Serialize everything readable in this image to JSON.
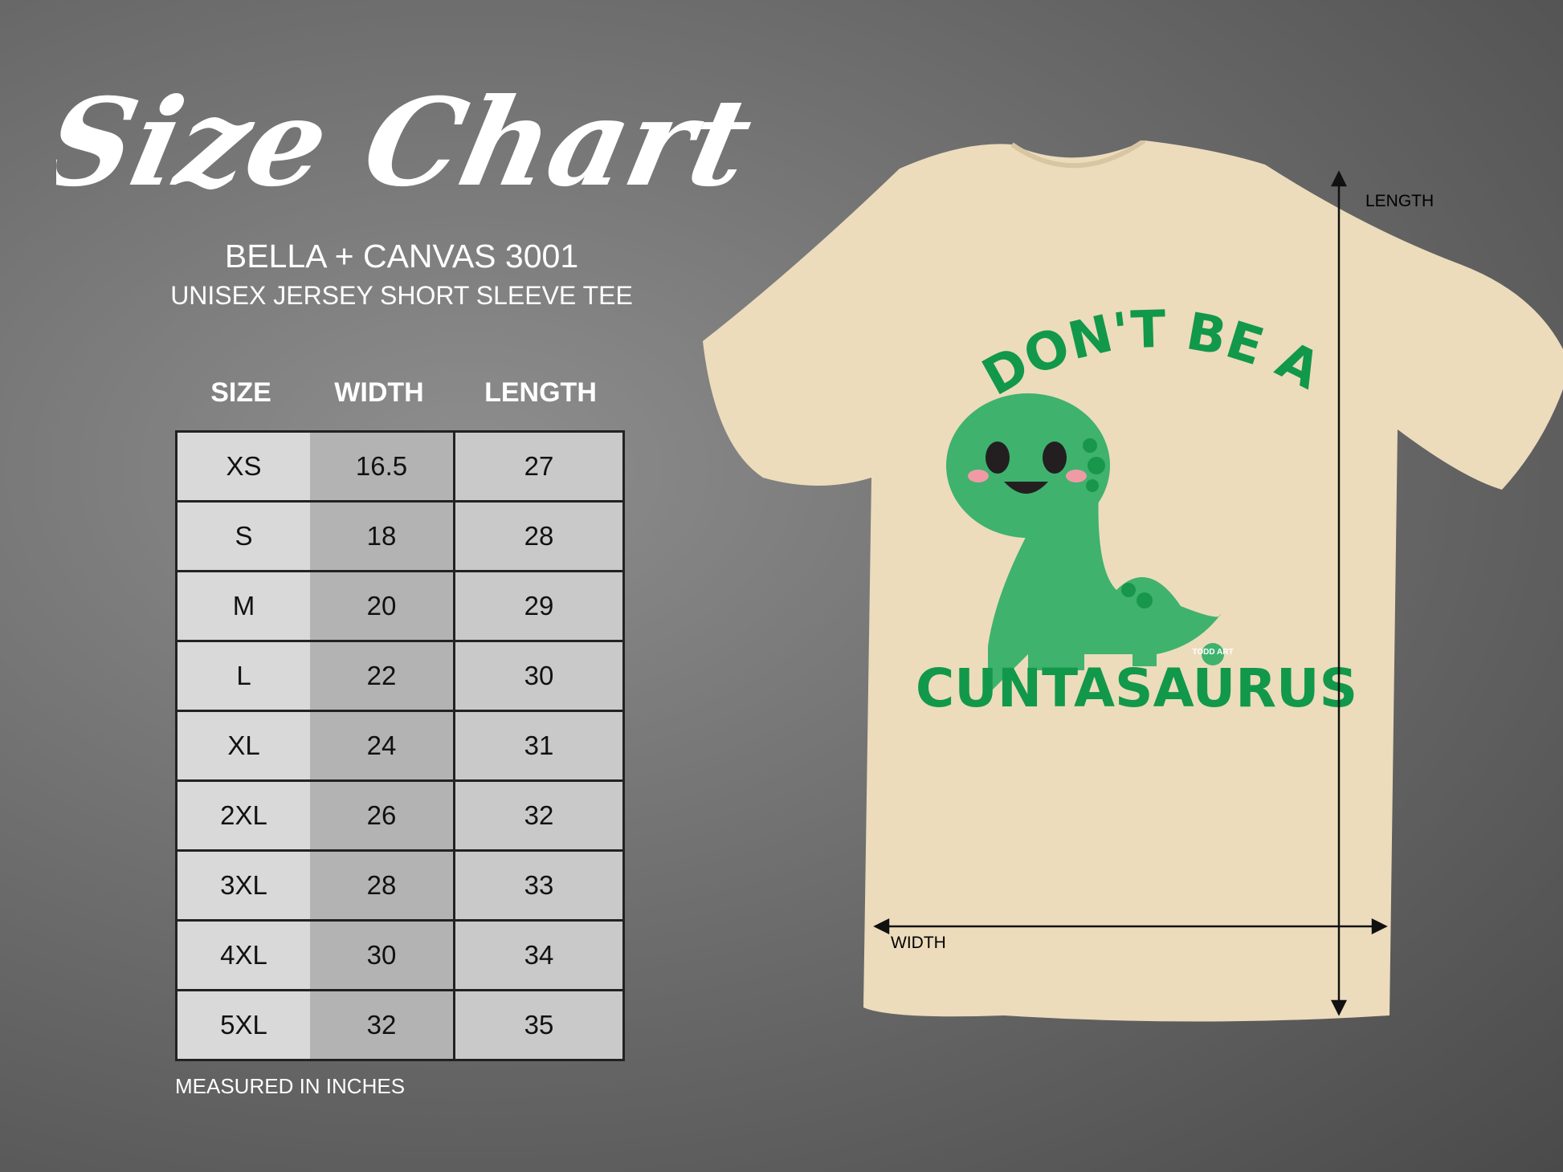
{
  "title": "Size Chart",
  "brand": "BELLA + CANVAS 3001",
  "product": "UNISEX JERSEY SHORT SLEEVE TEE",
  "table": {
    "headers": [
      "SIZE",
      "WIDTH",
      "LENGTH"
    ],
    "rows": [
      [
        "XS",
        "16.5",
        "27"
      ],
      [
        "S",
        "18",
        "28"
      ],
      [
        "M",
        "20",
        "29"
      ],
      [
        "L",
        "22",
        "30"
      ],
      [
        "XL",
        "24",
        "31"
      ],
      [
        "2XL",
        "26",
        "32"
      ],
      [
        "3XL",
        "28",
        "33"
      ],
      [
        "4XL",
        "30",
        "34"
      ],
      [
        "5XL",
        "32",
        "35"
      ]
    ]
  },
  "note": "MEASURED IN INCHES",
  "shirt": {
    "color": "#ecdcbc",
    "print_top": "DON'T BE A",
    "print_bottom": "CUNTASAURUS",
    "print_color": "#12984a",
    "logo": "TODD ART",
    "length_label": "LENGTH",
    "width_label": "WIDTH"
  }
}
